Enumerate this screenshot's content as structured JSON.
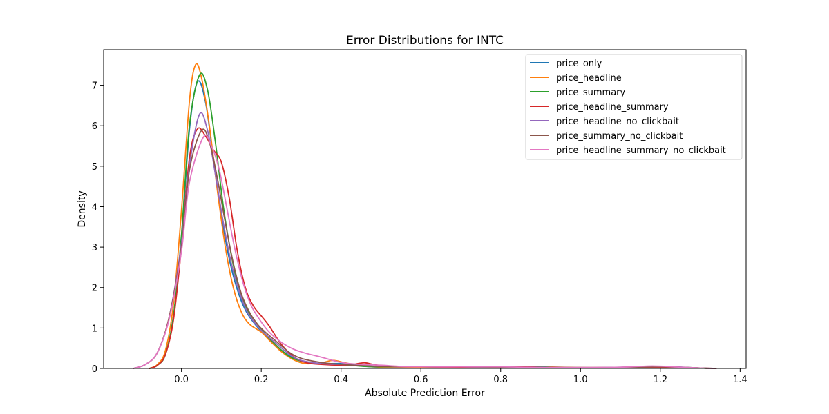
{
  "chart_data": {
    "type": "line",
    "title": "Error Distributions for INTC",
    "xlabel": "Absolute Prediction Error",
    "ylabel": "Density",
    "xlim": [
      -0.195,
      1.415
    ],
    "ylim": [
      0,
      7.88
    ],
    "xticks": [
      0.0,
      0.2,
      0.4,
      0.6,
      0.8,
      1.0,
      1.2,
      1.4
    ],
    "xtick_labels": [
      "0.0",
      "0.2",
      "0.4",
      "0.6",
      "0.8",
      "1.0",
      "1.2",
      "1.4"
    ],
    "yticks": [
      0,
      1,
      2,
      3,
      4,
      5,
      6,
      7
    ],
    "ytick_labels": [
      "0",
      "1",
      "2",
      "3",
      "4",
      "5",
      "6",
      "7"
    ],
    "grid": false,
    "legend_position": "top-right",
    "series": [
      {
        "name": "price_only",
        "color": "#1f77b4",
        "points": [
          [
            -0.08,
            0.0
          ],
          [
            -0.06,
            0.08
          ],
          [
            -0.04,
            0.35
          ],
          [
            -0.02,
            1.3
          ],
          [
            0.0,
            3.2
          ],
          [
            0.02,
            5.9
          ],
          [
            0.04,
            7.08
          ],
          [
            0.06,
            6.6
          ],
          [
            0.08,
            5.2
          ],
          [
            0.1,
            3.8
          ],
          [
            0.12,
            2.7
          ],
          [
            0.14,
            1.95
          ],
          [
            0.16,
            1.45
          ],
          [
            0.18,
            1.15
          ],
          [
            0.2,
            0.92
          ],
          [
            0.22,
            0.72
          ],
          [
            0.25,
            0.45
          ],
          [
            0.28,
            0.26
          ],
          [
            0.31,
            0.16
          ],
          [
            0.35,
            0.12
          ],
          [
            0.4,
            0.12
          ],
          [
            0.45,
            0.06
          ],
          [
            0.5,
            0.03
          ],
          [
            0.6,
            0.03
          ],
          [
            0.7,
            0.03
          ],
          [
            0.8,
            0.02
          ],
          [
            0.9,
            0.02
          ],
          [
            1.0,
            0.01
          ],
          [
            1.1,
            0.02
          ],
          [
            1.2,
            0.03
          ],
          [
            1.3,
            0.01
          ],
          [
            1.32,
            0.0
          ]
        ]
      },
      {
        "name": "price_headline",
        "color": "#ff7f0e",
        "points": [
          [
            -0.08,
            0.0
          ],
          [
            -0.06,
            0.1
          ],
          [
            -0.04,
            0.45
          ],
          [
            -0.02,
            1.6
          ],
          [
            0.0,
            3.9
          ],
          [
            0.02,
            6.6
          ],
          [
            0.035,
            7.5
          ],
          [
            0.05,
            7.2
          ],
          [
            0.07,
            6.0
          ],
          [
            0.09,
            4.4
          ],
          [
            0.11,
            3.0
          ],
          [
            0.13,
            2.0
          ],
          [
            0.15,
            1.4
          ],
          [
            0.17,
            1.1
          ],
          [
            0.2,
            0.9
          ],
          [
            0.22,
            0.7
          ],
          [
            0.25,
            0.42
          ],
          [
            0.28,
            0.22
          ],
          [
            0.31,
            0.12
          ],
          [
            0.35,
            0.14
          ],
          [
            0.38,
            0.2
          ],
          [
            0.41,
            0.14
          ],
          [
            0.45,
            0.07
          ],
          [
            0.5,
            0.03
          ],
          [
            0.6,
            0.03
          ],
          [
            0.7,
            0.03
          ],
          [
            0.8,
            0.03
          ],
          [
            0.9,
            0.04
          ],
          [
            1.0,
            0.02
          ],
          [
            1.1,
            0.02
          ],
          [
            1.2,
            0.04
          ],
          [
            1.3,
            0.01
          ],
          [
            1.32,
            0.0
          ]
        ]
      },
      {
        "name": "price_summary",
        "color": "#2ca02c",
        "points": [
          [
            -0.08,
            0.0
          ],
          [
            -0.06,
            0.08
          ],
          [
            -0.04,
            0.35
          ],
          [
            -0.02,
            1.3
          ],
          [
            0.0,
            3.3
          ],
          [
            0.02,
            6.0
          ],
          [
            0.045,
            7.25
          ],
          [
            0.065,
            6.9
          ],
          [
            0.085,
            5.6
          ],
          [
            0.105,
            4.0
          ],
          [
            0.125,
            2.8
          ],
          [
            0.145,
            1.95
          ],
          [
            0.165,
            1.45
          ],
          [
            0.19,
            1.1
          ],
          [
            0.21,
            0.85
          ],
          [
            0.24,
            0.55
          ],
          [
            0.27,
            0.3
          ],
          [
            0.3,
            0.18
          ],
          [
            0.34,
            0.13
          ],
          [
            0.38,
            0.1
          ],
          [
            0.42,
            0.08
          ],
          [
            0.46,
            0.05
          ],
          [
            0.5,
            0.04
          ],
          [
            0.6,
            0.04
          ],
          [
            0.7,
            0.03
          ],
          [
            0.8,
            0.03
          ],
          [
            0.87,
            0.05
          ],
          [
            0.95,
            0.02
          ],
          [
            1.05,
            0.01
          ],
          [
            1.2,
            0.04
          ],
          [
            1.3,
            0.01
          ],
          [
            1.32,
            0.0
          ]
        ]
      },
      {
        "name": "price_headline_summary",
        "color": "#d62728",
        "points": [
          [
            -0.08,
            0.0
          ],
          [
            -0.06,
            0.08
          ],
          [
            -0.04,
            0.35
          ],
          [
            -0.02,
            1.2
          ],
          [
            0.0,
            3.0
          ],
          [
            0.02,
            5.2
          ],
          [
            0.04,
            5.92
          ],
          [
            0.06,
            5.75
          ],
          [
            0.08,
            5.4
          ],
          [
            0.1,
            5.1
          ],
          [
            0.12,
            4.2
          ],
          [
            0.14,
            2.9
          ],
          [
            0.16,
            2.0
          ],
          [
            0.18,
            1.55
          ],
          [
            0.2,
            1.3
          ],
          [
            0.22,
            1.05
          ],
          [
            0.25,
            0.6
          ],
          [
            0.28,
            0.3
          ],
          [
            0.31,
            0.15
          ],
          [
            0.35,
            0.1
          ],
          [
            0.4,
            0.08
          ],
          [
            0.43,
            0.1
          ],
          [
            0.46,
            0.14
          ],
          [
            0.5,
            0.07
          ],
          [
            0.6,
            0.04
          ],
          [
            0.7,
            0.03
          ],
          [
            0.8,
            0.04
          ],
          [
            0.85,
            0.05
          ],
          [
            0.9,
            0.03
          ],
          [
            1.0,
            0.02
          ],
          [
            1.2,
            0.03
          ],
          [
            1.3,
            0.01
          ],
          [
            1.34,
            0.0
          ]
        ]
      },
      {
        "name": "price_headline_no_clickbait",
        "color": "#9467bd",
        "points": [
          [
            -0.12,
            0.0
          ],
          [
            -0.09,
            0.1
          ],
          [
            -0.06,
            0.4
          ],
          [
            -0.03,
            1.3
          ],
          [
            0.0,
            3.1
          ],
          [
            0.02,
            5.0
          ],
          [
            0.045,
            6.28
          ],
          [
            0.065,
            5.9
          ],
          [
            0.085,
            4.8
          ],
          [
            0.105,
            3.6
          ],
          [
            0.125,
            2.6
          ],
          [
            0.145,
            1.9
          ],
          [
            0.165,
            1.4
          ],
          [
            0.19,
            1.05
          ],
          [
            0.21,
            0.85
          ],
          [
            0.24,
            0.6
          ],
          [
            0.27,
            0.35
          ],
          [
            0.3,
            0.2
          ],
          [
            0.35,
            0.12
          ],
          [
            0.4,
            0.1
          ],
          [
            0.45,
            0.08
          ],
          [
            0.5,
            0.05
          ],
          [
            0.6,
            0.04
          ],
          [
            0.7,
            0.04
          ],
          [
            0.8,
            0.03
          ],
          [
            0.9,
            0.03
          ],
          [
            1.0,
            0.02
          ],
          [
            1.1,
            0.03
          ],
          [
            1.2,
            0.05
          ],
          [
            1.3,
            0.01
          ],
          [
            1.34,
            0.0
          ]
        ]
      },
      {
        "name": "price_summary_no_clickbait",
        "color": "#8c564b",
        "points": [
          [
            -0.12,
            0.0
          ],
          [
            -0.09,
            0.1
          ],
          [
            -0.06,
            0.4
          ],
          [
            -0.03,
            1.3
          ],
          [
            0.0,
            3.0
          ],
          [
            0.02,
            4.9
          ],
          [
            0.05,
            5.88
          ],
          [
            0.07,
            5.6
          ],
          [
            0.09,
            4.7
          ],
          [
            0.11,
            3.6
          ],
          [
            0.13,
            2.6
          ],
          [
            0.15,
            1.85
          ],
          [
            0.17,
            1.4
          ],
          [
            0.19,
            1.1
          ],
          [
            0.21,
            0.9
          ],
          [
            0.24,
            0.65
          ],
          [
            0.27,
            0.4
          ],
          [
            0.3,
            0.25
          ],
          [
            0.35,
            0.15
          ],
          [
            0.4,
            0.1
          ],
          [
            0.45,
            0.07
          ],
          [
            0.5,
            0.05
          ],
          [
            0.6,
            0.05
          ],
          [
            0.7,
            0.04
          ],
          [
            0.8,
            0.03
          ],
          [
            0.9,
            0.02
          ],
          [
            1.0,
            0.02
          ],
          [
            1.1,
            0.02
          ],
          [
            1.2,
            0.04
          ],
          [
            1.3,
            0.01
          ],
          [
            1.34,
            0.0
          ]
        ]
      },
      {
        "name": "price_headline_summary_no_clickbait",
        "color": "#e377c2",
        "points": [
          [
            -0.12,
            0.0
          ],
          [
            -0.09,
            0.1
          ],
          [
            -0.06,
            0.4
          ],
          [
            -0.03,
            1.25
          ],
          [
            0.0,
            2.9
          ],
          [
            0.02,
            4.6
          ],
          [
            0.055,
            5.72
          ],
          [
            0.075,
            5.5
          ],
          [
            0.095,
            4.9
          ],
          [
            0.115,
            3.9
          ],
          [
            0.135,
            2.9
          ],
          [
            0.155,
            2.1
          ],
          [
            0.175,
            1.55
          ],
          [
            0.2,
            1.15
          ],
          [
            0.22,
            0.9
          ],
          [
            0.25,
            0.65
          ],
          [
            0.28,
            0.48
          ],
          [
            0.31,
            0.38
          ],
          [
            0.35,
            0.28
          ],
          [
            0.4,
            0.15
          ],
          [
            0.45,
            0.1
          ],
          [
            0.5,
            0.08
          ],
          [
            0.55,
            0.05
          ],
          [
            0.6,
            0.04
          ],
          [
            0.7,
            0.04
          ],
          [
            0.8,
            0.04
          ],
          [
            0.9,
            0.02
          ],
          [
            1.0,
            0.02
          ],
          [
            1.1,
            0.03
          ],
          [
            1.18,
            0.06
          ],
          [
            1.25,
            0.03
          ],
          [
            1.3,
            0.01
          ],
          [
            1.32,
            0.0
          ]
        ]
      }
    ]
  }
}
